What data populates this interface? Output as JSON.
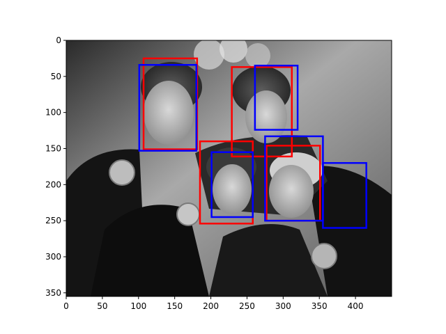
{
  "chart_data": {
    "type": "image-with-boxes",
    "title": "",
    "xlabel": "",
    "ylabel": "",
    "xlim": [
      0,
      450
    ],
    "ylim": [
      355,
      0
    ],
    "image_extent": [
      0,
      450,
      355,
      0
    ],
    "image_mode": "grayscale photo",
    "x_ticks": [
      0,
      50,
      100,
      150,
      200,
      250,
      300,
      350,
      400
    ],
    "y_ticks": [
      0,
      50,
      100,
      150,
      200,
      250,
      300,
      350
    ],
    "box_series": [
      {
        "color": "#ff0000",
        "boxes": [
          {
            "x0": 107,
            "y0": 25,
            "x1": 181,
            "y1": 151
          },
          {
            "x0": 229,
            "y0": 37,
            "x1": 312,
            "y1": 161
          },
          {
            "x0": 185,
            "y0": 140,
            "x1": 258,
            "y1": 254
          },
          {
            "x0": 277,
            "y0": 146,
            "x1": 351,
            "y1": 250
          }
        ]
      },
      {
        "color": "#0000ff",
        "boxes": [
          {
            "x0": 101,
            "y0": 34,
            "x1": 180,
            "y1": 153
          },
          {
            "x0": 261,
            "y0": 35,
            "x1": 320,
            "y1": 124
          },
          {
            "x0": 201,
            "y0": 155,
            "x1": 258,
            "y1": 245
          },
          {
            "x0": 275,
            "y0": 133,
            "x1": 355,
            "y1": 250
          },
          {
            "x0": 355,
            "y0": 170,
            "x1": 415,
            "y1": 260
          }
        ]
      }
    ]
  }
}
